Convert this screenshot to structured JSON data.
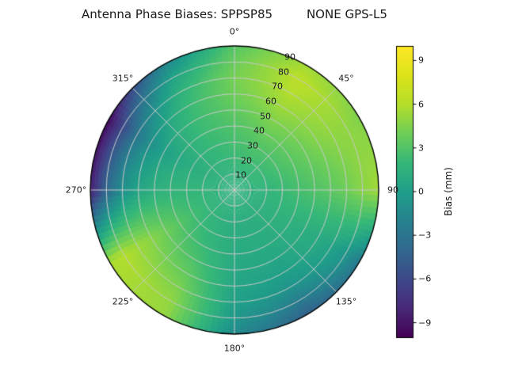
{
  "chart_data": {
    "type": "heatmap",
    "projection": "polar",
    "title": "Antenna Phase Biases: SPPSP85         NONE GPS-L5",
    "angular_convention": "azimuth degrees, 0 at top, clockwise",
    "radial_quantity": "zenith angle degrees, 0 center to 90 rim",
    "azimuth_deg": [
      0,
      30,
      60,
      90,
      120,
      150,
      180,
      210,
      240,
      270,
      300,
      330
    ],
    "zenith_deg": [
      0,
      10,
      20,
      30,
      40,
      50,
      60,
      70,
      80,
      90
    ],
    "values_mm": [
      [
        1.5,
        1.5,
        1.5,
        1.5,
        1.5,
        1.5,
        1.5,
        1.5,
        1.5,
        1.5,
        1.5,
        1.5
      ],
      [
        1.8,
        1.8,
        1.8,
        1.6,
        1.5,
        1.4,
        1.4,
        1.5,
        1.6,
        1.6,
        1.5,
        1.6
      ],
      [
        2.2,
        2.4,
        2.2,
        1.8,
        1.5,
        1.3,
        1.2,
        1.6,
        2.0,
        1.8,
        1.4,
        1.8
      ],
      [
        2.6,
        3.0,
        2.8,
        2.2,
        1.6,
        1.2,
        1.1,
        1.8,
        2.5,
        1.9,
        1.2,
        2.0
      ],
      [
        3.0,
        3.8,
        3.4,
        2.6,
        1.5,
        1.0,
        1.0,
        2.2,
        3.2,
        1.8,
        0.8,
        2.2
      ],
      [
        3.5,
        4.6,
        4.0,
        3.0,
        1.3,
        0.6,
        0.8,
        2.8,
        4.0,
        1.4,
        0.2,
        2.2
      ],
      [
        4.0,
        5.4,
        4.6,
        3.4,
        1.0,
        0.2,
        0.5,
        3.6,
        4.8,
        0.6,
        -1.0,
        2.0
      ],
      [
        4.2,
        6.0,
        5.0,
        4.0,
        0.5,
        -0.8,
        0.2,
        4.4,
        5.4,
        -1.0,
        -3.0,
        1.4
      ],
      [
        3.8,
        6.3,
        5.0,
        4.8,
        -0.5,
        -2.5,
        -0.5,
        5.0,
        6.0,
        -4.0,
        -6.0,
        0.2
      ],
      [
        3.2,
        5.5,
        4.5,
        5.5,
        -2.5,
        -4.5,
        -1.5,
        5.2,
        5.8,
        -8.5,
        -9.5,
        -2.0
      ]
    ],
    "angle_tick_labels": [
      "0°",
      "45°",
      "90",
      "135°",
      "180°",
      "225°",
      "270°",
      "315°"
    ],
    "angle_tick_positions_deg": [
      0,
      45,
      90,
      135,
      180,
      225,
      270,
      315
    ],
    "radial_tick_labels": [
      "10",
      "20",
      "30",
      "40",
      "50",
      "60",
      "70",
      "80",
      "90"
    ],
    "radial_tick_positions": [
      10,
      20,
      30,
      40,
      50,
      60,
      70,
      80,
      90
    ],
    "grid": true,
    "grid_color": "#c9c9c9",
    "outline_color": "#000000",
    "colorbar": {
      "label": "Bias (mm)",
      "tick_labels": [
        "9",
        "6",
        "3",
        "0",
        "−3",
        "−6",
        "−9"
      ],
      "tick_values": [
        9,
        6,
        3,
        0,
        -3,
        -6,
        -9
      ],
      "vmin": -10,
      "vmax": 10,
      "colormap": "viridis",
      "viridis_stops": [
        "#440154",
        "#482878",
        "#3e4989",
        "#31688e",
        "#26828e",
        "#1f9e89",
        "#35b779",
        "#6ece58",
        "#b5de2b",
        "#dce319",
        "#fde725"
      ]
    }
  }
}
